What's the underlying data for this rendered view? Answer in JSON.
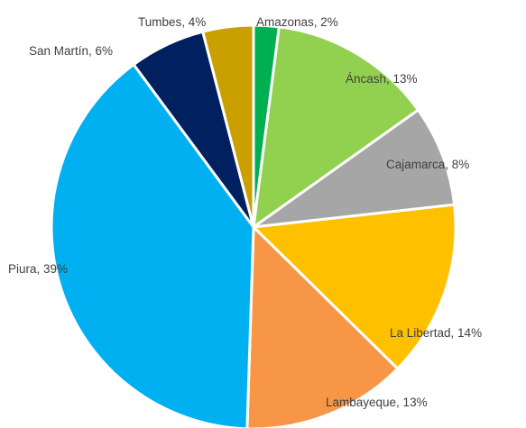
{
  "chart_data": {
    "type": "pie",
    "title": "",
    "slices": [
      {
        "label": "Amazonas",
        "value": 2,
        "label_text": "Amazonas, 2%",
        "color": "#00b050"
      },
      {
        "label": "Áncash",
        "value": 13,
        "label_text": "Áncash, 13%",
        "color": "#92d050"
      },
      {
        "label": "Cajamarca",
        "value": 8,
        "label_text": "Cajamarca, 8%",
        "color": "#a6a6a6"
      },
      {
        "label": "La Libertad",
        "value": 14,
        "label_text": "La Libertad, 14%",
        "color": "#ffc000"
      },
      {
        "label": "Lambayeque",
        "value": 13,
        "label_text": "Lambayeque, 13%",
        "color": "#f79646"
      },
      {
        "label": "Piura",
        "value": 39,
        "label_text": "Piura, 39%",
        "color": "#00b0f0"
      },
      {
        "label": "San Martín",
        "value": 6,
        "label_text": "San Martín, 6%",
        "color": "#002060"
      },
      {
        "label": "Tumbes",
        "value": 4,
        "label_text": "Tumbes, 4%",
        "color": "#c9a000"
      }
    ],
    "legend": "none",
    "labels": "outside-end, category and percentage"
  }
}
